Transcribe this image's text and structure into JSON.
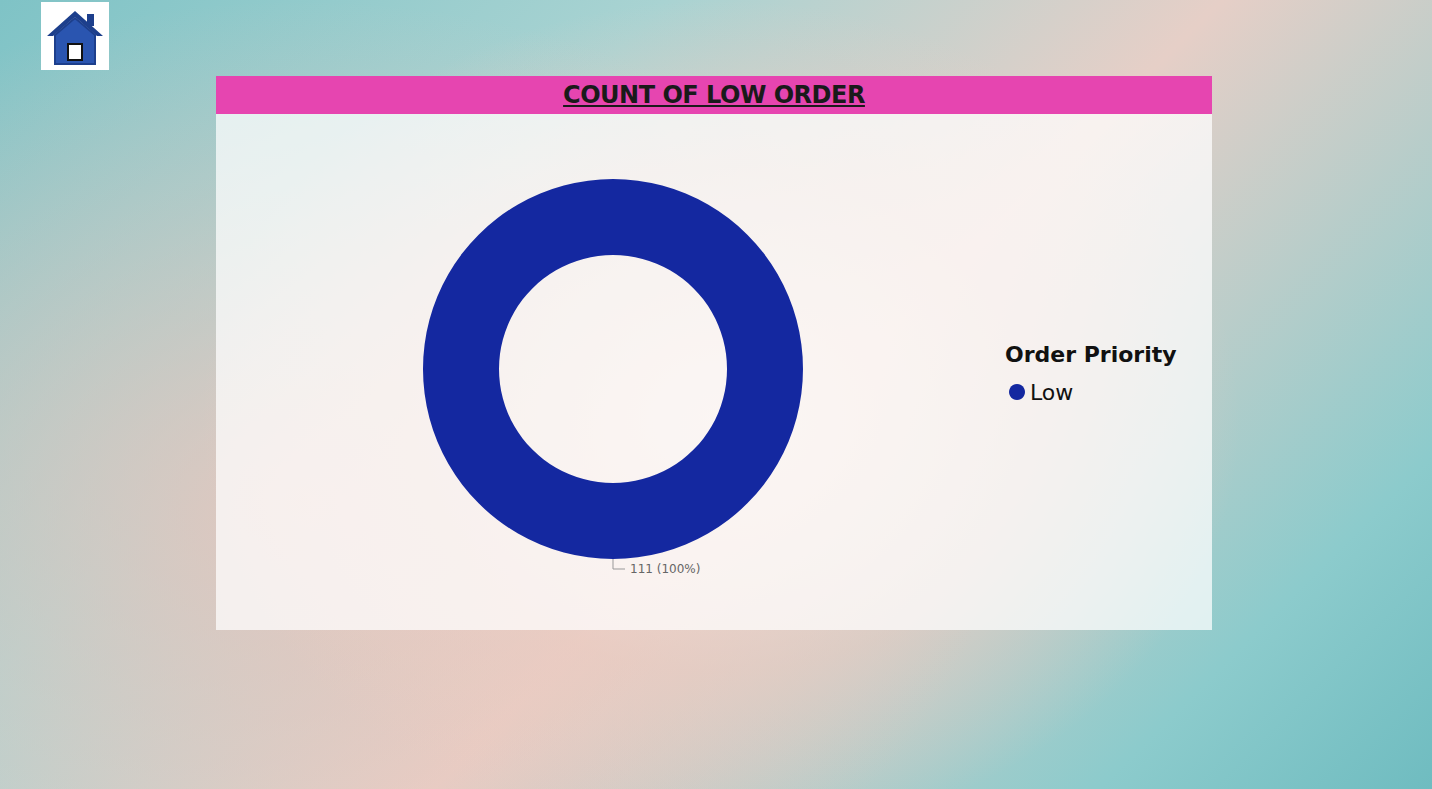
{
  "chart_data": {
    "type": "pie",
    "title": "COUNT OF LOW ORDER",
    "legend_title": "Order Priority",
    "categories": [
      "Low"
    ],
    "values": [
      111
    ],
    "value_labels": [
      "111 (100%)"
    ],
    "colors": [
      "#1428a0"
    ],
    "legend": "right",
    "data_labels": true
  }
}
